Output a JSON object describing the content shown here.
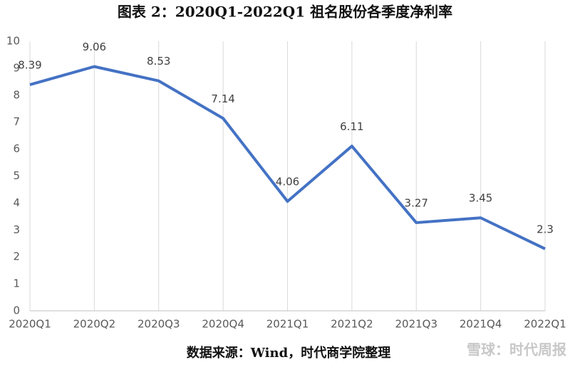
{
  "chart_data": {
    "type": "line",
    "title": "图表 2：2020Q1-2022Q1 祖名股份各季度净利率",
    "source": "数据来源：Wind，时代商学院整理",
    "watermark": "雪球：时代周报",
    "categories": [
      "2020Q1",
      "2020Q2",
      "2020Q3",
      "2020Q4",
      "2021Q1",
      "2021Q2",
      "2021Q3",
      "2021Q4",
      "2022Q1"
    ],
    "values": [
      8.39,
      9.06,
      8.53,
      7.14,
      4.06,
      6.11,
      3.27,
      3.45,
      2.3
    ],
    "color": "#4472c4",
    "ylim": [
      0,
      10
    ],
    "yticks": [
      0,
      1,
      2,
      3,
      4,
      5,
      6,
      7,
      8,
      9,
      10
    ],
    "grid": "x"
  }
}
